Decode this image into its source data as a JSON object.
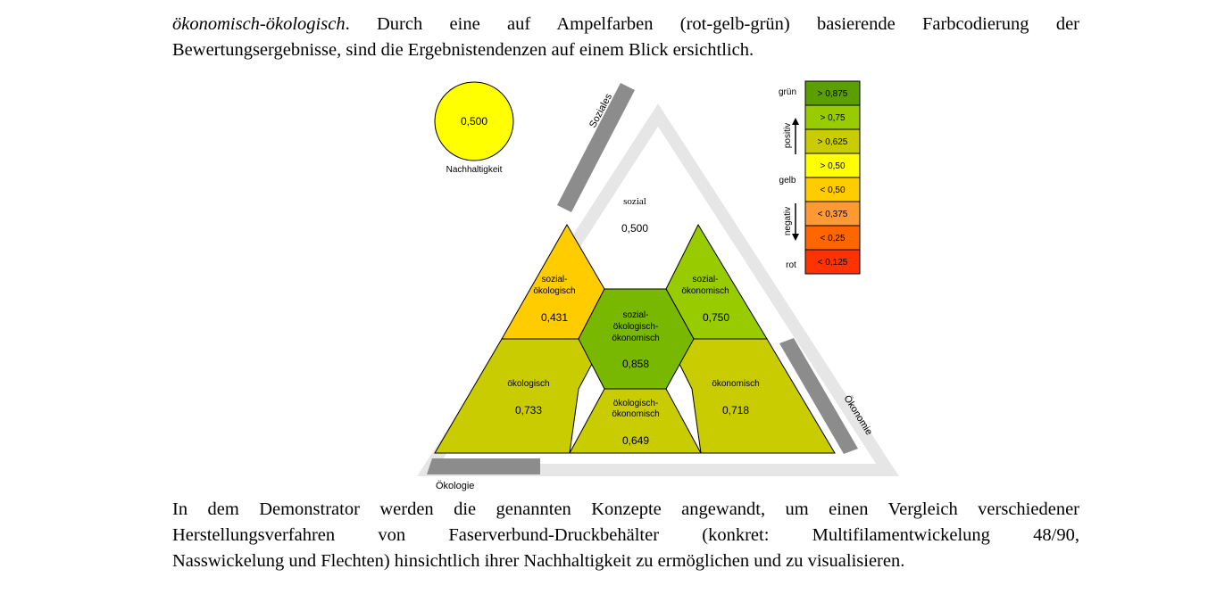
{
  "paragraph_top": {
    "line1_italic": "ökonomisch-ökologisch",
    "line1_rest": ". Durch eine auf Ampelfarben (rot-gelb-grün) basierende Farbcodierung der",
    "line2": "Bewertungsergebnisse, sind die Ergebnistendenzen auf einem Blick ersichtlich."
  },
  "figure": {
    "overall": {
      "value": "0,500",
      "label": "Nachhaltigkeit",
      "color": "#ffff00"
    },
    "axes": {
      "social": "Soziales",
      "economy": "Ökonomie",
      "ecology": "Ökologie"
    },
    "regions": {
      "sozial": {
        "label": "sozial",
        "value": "0,500",
        "color": "#ffffff"
      },
      "sozial_oekologisch": {
        "label1": "sozial-",
        "label2": "ökologisch",
        "value": "0,431",
        "color": "#ffcc00"
      },
      "sozial_oekonomisch": {
        "label1": "sozial-",
        "label2": "ökonomisch",
        "value": "0,750",
        "color": "#99cc00"
      },
      "center": {
        "label1": "sozial-",
        "label2": "ökologisch-",
        "label3": "ökonomisch",
        "value": "0,858",
        "color": "#79b800"
      },
      "oekologisch": {
        "label": "ökologisch",
        "value": "0,733",
        "color": "#c8cc00"
      },
      "oekonomisch": {
        "label": "ökonomisch",
        "value": "0,718",
        "color": "#c8cc00"
      },
      "oekologisch_oekonomisch": {
        "label1": "ökologisch-",
        "label2": "ökonomisch",
        "value": "0,649",
        "color": "#c8cc00"
      }
    },
    "legend": {
      "label_gruen": "grün",
      "label_positiv": "positiv",
      "label_gelb": "gelb",
      "label_negativ": "negativ",
      "label_rot": "rot",
      "entries": [
        {
          "text": "> 0,875",
          "color": "#5a9e00"
        },
        {
          "text": "> 0,75",
          "color": "#99cc00"
        },
        {
          "text": "> 0,625",
          "color": "#c8cc00"
        },
        {
          "text": "> 0,50",
          "color": "#ffff00"
        },
        {
          "text": "< 0,50",
          "color": "#ffcc00"
        },
        {
          "text": "< 0,375",
          "color": "#ff9933"
        },
        {
          "text": "< 0,25",
          "color": "#ff6600"
        },
        {
          "text": "< 0,125",
          "color": "#ff3300"
        }
      ]
    }
  },
  "paragraph_bottom": {
    "line1": "In dem Demonstrator werden die genannten Konzepte angewandt, um einen Vergleich verschiedener",
    "line2": "Herstellungsverfahren von Faserverbund-Druckbehälter (konkret: Multifilamentwickelung 48/90,",
    "line3": "Nasswickelung und Flechten) hinsichtlich ihrer Nachhaltigkeit zu ermöglichen und zu visualisieren."
  }
}
